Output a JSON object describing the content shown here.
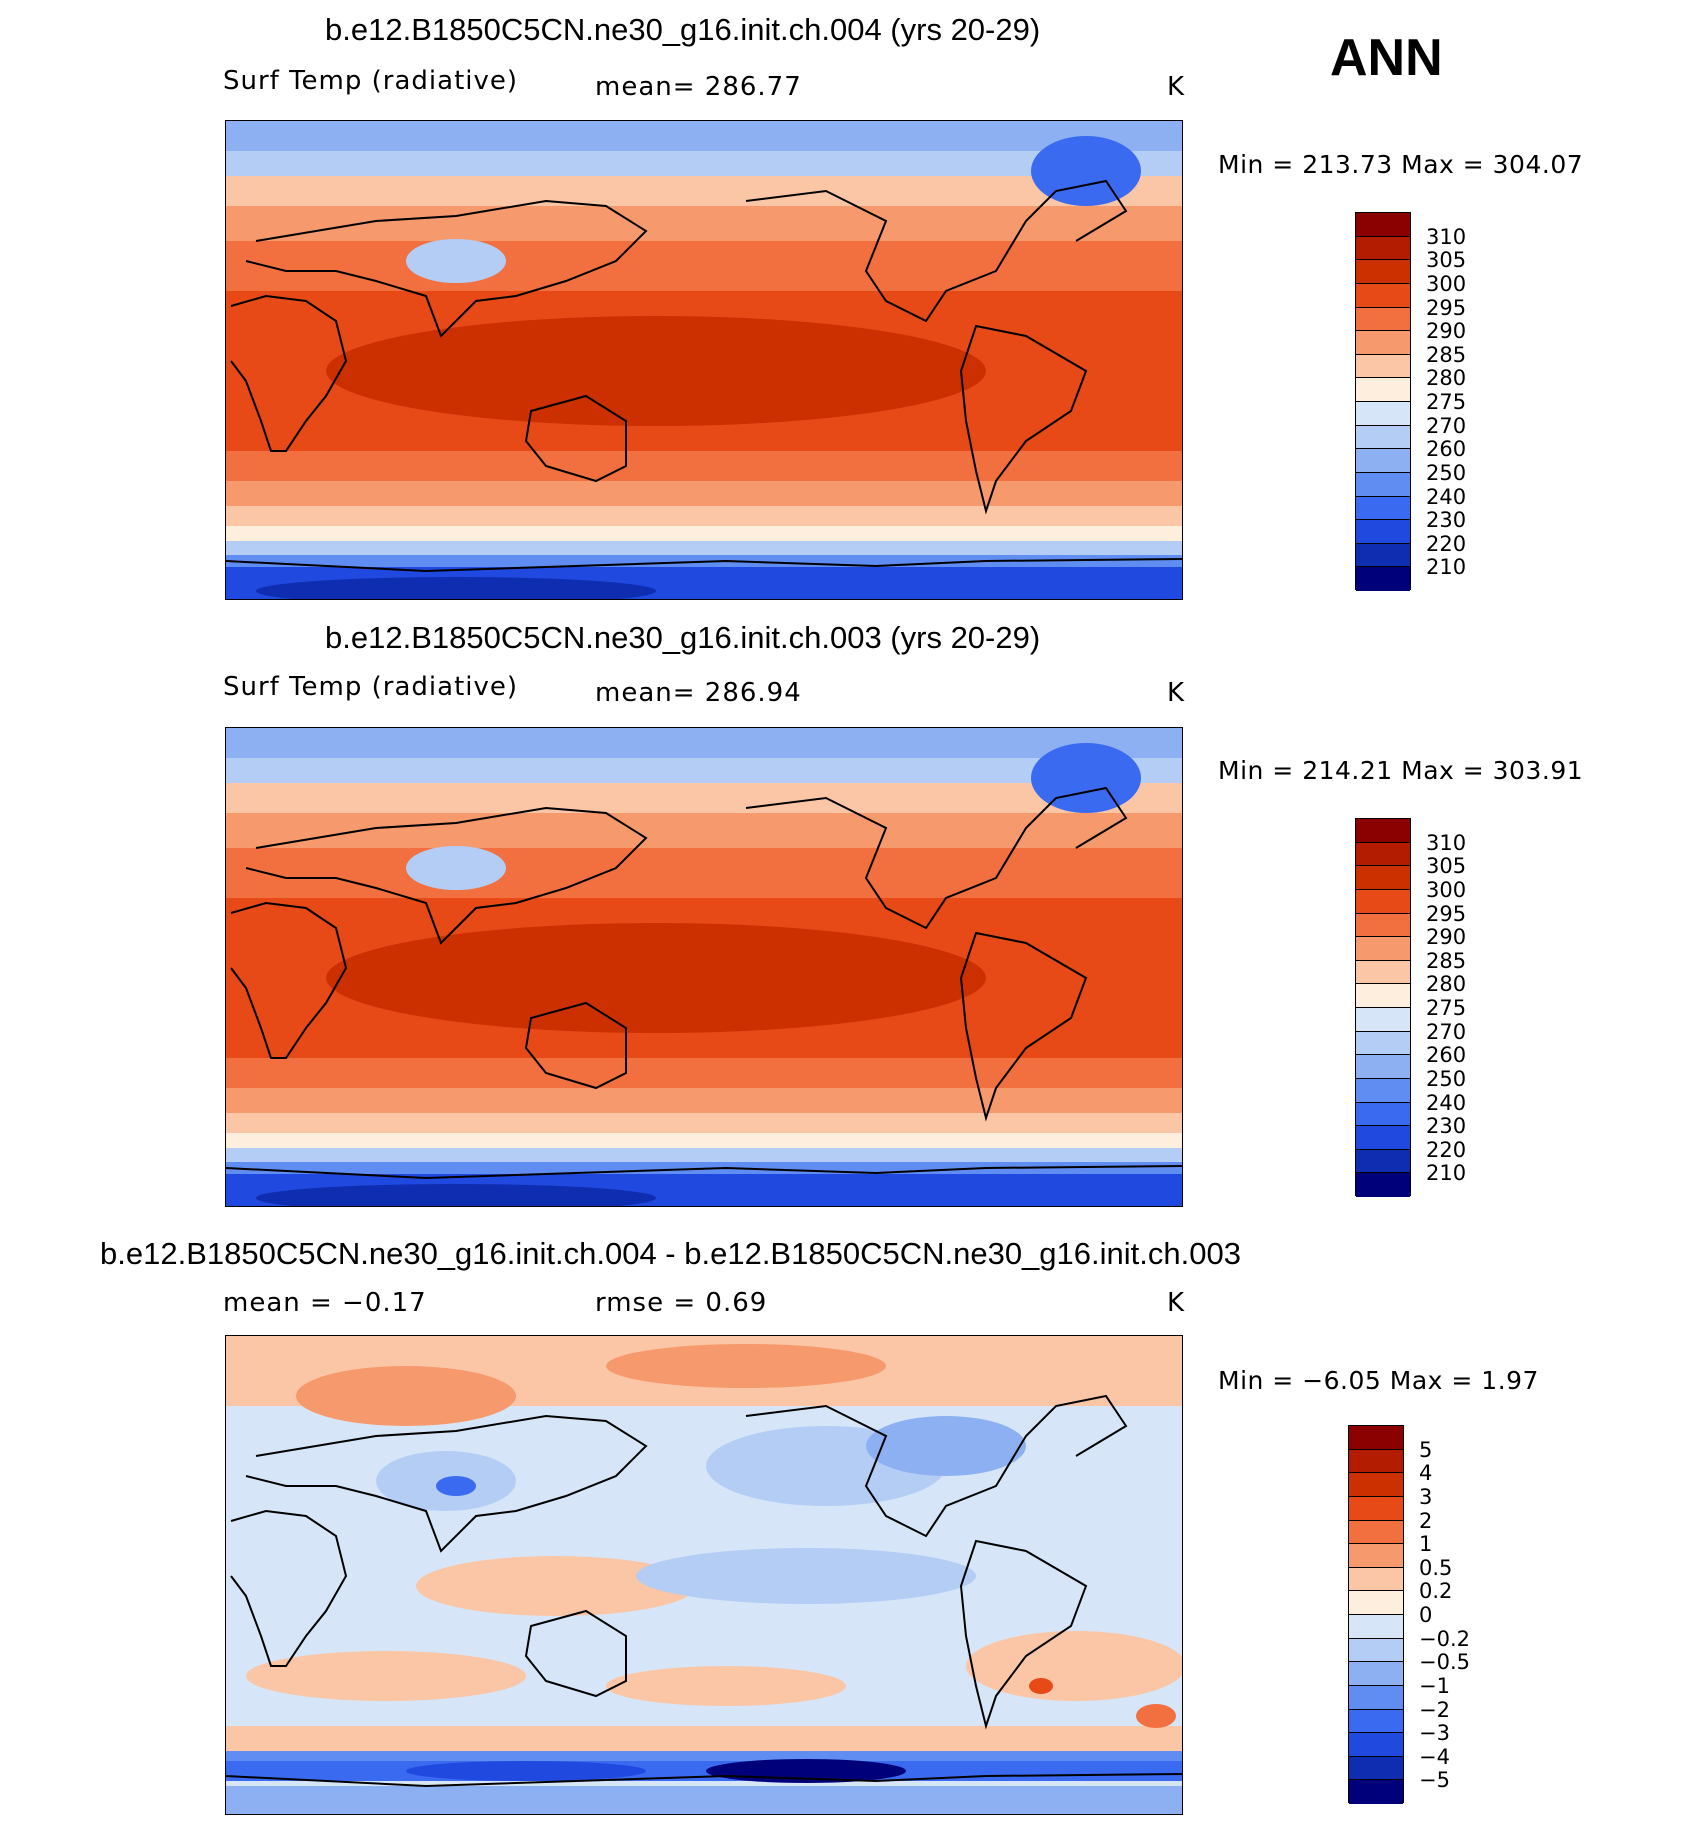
{
  "header": {
    "season": "ANN"
  },
  "panels": [
    {
      "id": "top",
      "title": "b.e12.B1850C5CN.ne30_g16.init.ch.004 (yrs 20-29)",
      "left_label": "Surf Temp (radiative)",
      "center_label": "mean=  286.77",
      "units": "K",
      "minmax": "Min  =  213.73  Max  =  304.07",
      "kind": "abs"
    },
    {
      "id": "middle",
      "title": "b.e12.B1850C5CN.ne30_g16.init.ch.003 (yrs 20-29)",
      "left_label": "Surf Temp (radiative)",
      "center_label": "mean=  286.94",
      "units": "K",
      "minmax": "Min  =  214.21  Max  =  303.91",
      "kind": "abs"
    },
    {
      "id": "bottom",
      "title": "b.e12.B1850C5CN.ne30_g16.init.ch.004 - b.e12.B1850C5CN.ne30_g16.init.ch.003",
      "left_label": "mean =    −0.17",
      "center_label": "rmse =     0.69",
      "units": "K",
      "minmax": "Min  =    −6.05  Max  =     1.97",
      "kind": "diff"
    }
  ],
  "colorbars": {
    "abs": {
      "labels": [
        "310",
        "305",
        "300",
        "295",
        "290",
        "285",
        "280",
        "275",
        "270",
        "260",
        "250",
        "240",
        "230",
        "220",
        "210"
      ],
      "colors": [
        "#8b0000",
        "#b41c00",
        "#cd3000",
        "#e84a17",
        "#f27040",
        "#f6996d",
        "#fbc6a6",
        "#fdeedd",
        "#d6e6f8",
        "#b3cdf5",
        "#8cb0f2",
        "#5f8df2",
        "#3a6af0",
        "#1f49df",
        "#0f2db0",
        "#00007a"
      ]
    },
    "diff": {
      "labels": [
        "5",
        "4",
        "3",
        "2",
        "1",
        "0.5",
        "0.2",
        "0",
        "−0.2",
        "−0.5",
        "−1",
        "−2",
        "−3",
        "−4",
        "−5"
      ],
      "colors": [
        "#8b0000",
        "#b41c00",
        "#cd3000",
        "#e84a17",
        "#f27040",
        "#f6996d",
        "#fbc6a6",
        "#fdeedd",
        "#d6e6f8",
        "#b3cdf5",
        "#8cb0f2",
        "#5f8df2",
        "#3a6af0",
        "#1f49df",
        "#0f2db0",
        "#00007a"
      ]
    }
  },
  "chart_data": [
    {
      "type": "heatmap",
      "title": "b.e12.B1850C5CN.ne30_g16.init.ch.004 (yrs 20-29)",
      "variable": "Surf Temp (radiative)",
      "units": "K",
      "mean": 286.77,
      "min": 213.73,
      "max": 304.07,
      "contour_levels": [
        210,
        220,
        230,
        240,
        250,
        260,
        270,
        275,
        280,
        285,
        290,
        295,
        300,
        305,
        310
      ]
    },
    {
      "type": "heatmap",
      "title": "b.e12.B1850C5CN.ne30_g16.init.ch.003 (yrs 20-29)",
      "variable": "Surf Temp (radiative)",
      "units": "K",
      "mean": 286.94,
      "min": 214.21,
      "max": 303.91,
      "contour_levels": [
        210,
        220,
        230,
        240,
        250,
        260,
        270,
        275,
        280,
        285,
        290,
        295,
        300,
        305,
        310
      ]
    },
    {
      "type": "heatmap",
      "title": "b.e12.B1850C5CN.ne30_g16.init.ch.004 - b.e12.B1850C5CN.ne30_g16.init.ch.003",
      "units": "K",
      "mean": -0.17,
      "rmse": 0.69,
      "min": -6.05,
      "max": 1.97,
      "contour_levels": [
        -5,
        -4,
        -3,
        -2,
        -1,
        -0.5,
        -0.2,
        0,
        0.2,
        0.5,
        1,
        2,
        3,
        4,
        5
      ]
    }
  ]
}
